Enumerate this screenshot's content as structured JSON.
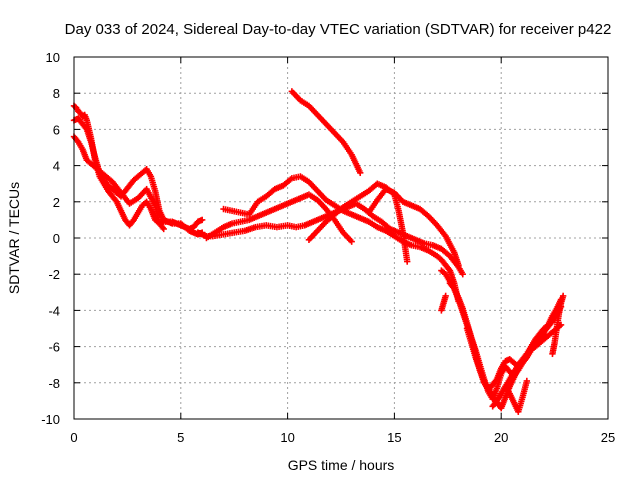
{
  "chart_data": {
    "type": "scatter",
    "title": "Day 033 of 2024, Sidereal Day-to-day VTEC variation (SDTVAR) for receiver p422",
    "xlabel": "GPS time / hours",
    "ylabel": "SDTVAR / TECUs",
    "xlim": [
      0,
      25
    ],
    "ylim": [
      -10,
      10
    ],
    "xticks": [
      0,
      5,
      10,
      15,
      20,
      25
    ],
    "yticks": [
      -10,
      -8,
      -6,
      -4,
      -2,
      0,
      2,
      4,
      6,
      8,
      10
    ],
    "grid": true,
    "marker": "plus",
    "color": "#ff0000",
    "series": [
      {
        "x": [
          0.0,
          0.1,
          0.2,
          0.3,
          0.4,
          0.5,
          0.6,
          0.8,
          1.0,
          1.2,
          1.4,
          1.6,
          1.8,
          2.0,
          2.2,
          2.4,
          2.6,
          2.8,
          3.0,
          3.2,
          3.4,
          3.6,
          3.8,
          4.0,
          4.2,
          4.4,
          4.6,
          4.8,
          5.0,
          5.2,
          5.4,
          5.6,
          5.8,
          6.0
        ],
        "y": [
          7.3,
          7.2,
          7.0,
          6.9,
          6.7,
          6.8,
          6.5,
          5.5,
          4.2,
          3.4,
          3.0,
          2.6,
          2.3,
          2.0,
          1.5,
          1.0,
          0.7,
          1.0,
          1.4,
          1.8,
          2.0,
          1.6,
          1.0,
          0.8,
          0.9,
          0.9,
          0.8,
          0.8,
          0.8,
          0.6,
          0.5,
          0.6,
          0.9,
          1.0
        ]
      },
      {
        "x": [
          0.0,
          0.2,
          0.4,
          0.6,
          0.8,
          1.0,
          1.2,
          1.4,
          1.6,
          1.8,
          2.0,
          2.2,
          2.4,
          2.6,
          2.8,
          3.0,
          3.2,
          3.4,
          3.6,
          3.8,
          4.0,
          4.2,
          4.4,
          4.6,
          4.8,
          5.0,
          5.2,
          5.4,
          5.6,
          5.8,
          6.0
        ],
        "y": [
          6.5,
          6.6,
          6.3,
          6.0,
          5.3,
          4.4,
          3.6,
          3.2,
          2.9,
          2.7,
          2.5,
          2.3,
          2.6,
          2.9,
          3.2,
          3.4,
          3.6,
          3.8,
          3.4,
          2.6,
          1.5,
          1.0,
          0.9,
          0.9,
          0.8,
          0.7,
          0.6,
          0.4,
          0.3,
          0.2,
          0.3
        ]
      },
      {
        "x": [
          0.0,
          0.2,
          0.4,
          0.6,
          1.0,
          1.4,
          1.8,
          2.2,
          2.6,
          3.0,
          3.4,
          3.8,
          4.0,
          4.2
        ],
        "y": [
          5.6,
          5.3,
          4.9,
          4.3,
          3.9,
          3.5,
          3.1,
          2.5,
          1.9,
          2.2,
          2.7,
          1.8,
          0.8,
          0.5
        ]
      },
      {
        "x": [
          5.8,
          6.0,
          6.2,
          6.5,
          7.0,
          7.5,
          8.0,
          8.5,
          9.0,
          9.5,
          10.0,
          10.4,
          10.8,
          11.2,
          11.6,
          12.0,
          12.4,
          12.8,
          13.2,
          13.6,
          14.0,
          14.4,
          14.8,
          15.2,
          15.6,
          16.0,
          16.4,
          16.8,
          17.2,
          17.6,
          18.0,
          18.2
        ],
        "y": [
          0.3,
          0.2,
          0.1,
          0.1,
          0.2,
          0.3,
          0.4,
          0.6,
          0.7,
          0.6,
          0.7,
          0.6,
          0.7,
          0.9,
          1.1,
          1.3,
          1.5,
          1.7,
          1.9,
          1.6,
          1.2,
          0.9,
          0.5,
          0.3,
          0.1,
          -0.1,
          -0.3,
          -0.4,
          -0.6,
          -1.0,
          -1.6,
          -2.0
        ]
      },
      {
        "x": [
          6.2,
          6.6,
          7.0,
          7.4,
          7.8,
          8.2,
          8.6,
          9.0,
          9.4,
          9.8,
          10.2,
          10.6,
          11.0,
          11.4,
          11.8,
          12.2,
          12.6,
          13.0
        ],
        "y": [
          0.0,
          0.3,
          0.6,
          0.8,
          0.9,
          1.0,
          1.2,
          1.4,
          1.6,
          1.8,
          2.0,
          2.2,
          2.4,
          2.1,
          1.6,
          1.0,
          0.3,
          -0.2
        ]
      },
      {
        "x": [
          7.0,
          7.4,
          7.8,
          8.2,
          8.6,
          9.0,
          9.4,
          9.8,
          10.2,
          10.6,
          11.0,
          11.4,
          11.8,
          12.2,
          12.6,
          13.0,
          13.4,
          13.8,
          14.2,
          14.6,
          15.0,
          15.4,
          15.8,
          16.2,
          16.6,
          17.0,
          17.2,
          17.4,
          17.6,
          17.8,
          18.0
        ],
        "y": [
          1.6,
          1.5,
          1.4,
          1.3,
          2.0,
          2.3,
          2.7,
          2.9,
          3.3,
          3.4,
          3.1,
          2.6,
          2.1,
          1.8,
          1.5,
          1.3,
          1.1,
          0.9,
          0.6,
          0.4,
          0.1,
          -0.2,
          -0.4,
          -0.5,
          -0.7,
          -1.0,
          -1.2,
          -1.5,
          -1.8,
          -2.5,
          -3.5
        ]
      },
      {
        "x": [
          10.2,
          10.6,
          11.0,
          11.4,
          11.8,
          12.2,
          12.6,
          13.0,
          13.4
        ],
        "y": [
          8.1,
          7.6,
          7.3,
          6.8,
          6.3,
          5.8,
          5.3,
          4.6,
          3.6
        ]
      },
      {
        "x": [
          11.0,
          11.4,
          11.8,
          12.2,
          12.6,
          13.0,
          13.4,
          13.8,
          14.2,
          14.6,
          15.0,
          15.2,
          15.4,
          15.6
        ],
        "y": [
          -0.1,
          0.4,
          0.9,
          1.3,
          1.7,
          2.0,
          2.3,
          2.6,
          3.0,
          2.8,
          2.4,
          1.5,
          0.3,
          -1.3
        ]
      },
      {
        "x": [
          13.8,
          14.2,
          14.6,
          15.0,
          15.4,
          15.8,
          16.2,
          16.6,
          17.0,
          17.4,
          17.8,
          18.0
        ],
        "y": [
          1.4,
          2.1,
          2.7,
          2.5,
          2.0,
          1.8,
          1.6,
          1.2,
          0.7,
          0.1,
          -0.8,
          -1.5
        ]
      },
      {
        "x": [
          17.2,
          17.4,
          17.6,
          17.8,
          18.0,
          18.2,
          18.4,
          18.6,
          18.8,
          19.0,
          19.2,
          19.4,
          19.6,
          19.8,
          20.0,
          20.2,
          20.4,
          20.6,
          20.8,
          21.0,
          21.2,
          21.4,
          21.6,
          21.8,
          22.0,
          22.2,
          22.4,
          22.6,
          22.8
        ],
        "y": [
          -1.8,
          -2.0,
          -2.4,
          -2.8,
          -3.4,
          -4.1,
          -4.8,
          -5.5,
          -6.2,
          -7.0,
          -7.8,
          -8.5,
          -8.9,
          -8.3,
          -7.5,
          -7.1,
          -7.4,
          -7.6,
          -7.3,
          -6.9,
          -6.5,
          -6.1,
          -5.8,
          -5.5,
          -5.2,
          -4.9,
          -4.6,
          -4.2,
          -3.8
        ]
      },
      {
        "x": [
          17.6,
          17.8,
          18.0,
          18.2,
          18.4,
          18.6,
          18.8,
          19.0,
          19.2,
          19.4,
          19.6,
          19.8,
          20.0,
          20.2,
          20.4,
          20.6,
          20.8,
          21.0,
          21.2,
          21.4,
          21.6,
          21.8,
          22.0,
          22.2,
          22.4,
          22.6,
          22.8
        ],
        "y": [
          -2.5,
          -2.8,
          -3.3,
          -3.9,
          -4.7,
          -5.5,
          -6.4,
          -7.3,
          -8.0,
          -8.4,
          -8.1,
          -7.8,
          -7.2,
          -6.8,
          -6.7,
          -6.9,
          -7.1,
          -6.8,
          -6.4,
          -6.0,
          -5.6,
          -5.3,
          -5.0,
          -4.8,
          -4.3,
          -3.9,
          -3.4
        ]
      },
      {
        "x": [
          18.4,
          18.6,
          18.8,
          19.0,
          19.2,
          19.4,
          19.6,
          19.8,
          20.0,
          20.2,
          20.4,
          20.6,
          20.8,
          21.0,
          21.2,
          21.4,
          21.6,
          21.8,
          22.0
        ],
        "y": [
          -5.0,
          -5.8,
          -6.6,
          -7.3,
          -7.9,
          -8.3,
          -8.7,
          -9.1,
          -9.4,
          -8.8,
          -8.2,
          -7.7,
          -7.2,
          -6.9,
          -6.6,
          -6.2,
          -5.9,
          -5.6,
          -5.3
        ]
      },
      {
        "x": [
          19.6,
          19.8,
          20.0,
          20.2,
          20.4,
          20.6,
          20.8,
          21.0,
          21.2,
          21.4,
          21.6,
          21.8,
          22.0,
          22.2,
          22.4,
          22.6,
          22.8
        ],
        "y": [
          -9.3,
          -9.0,
          -8.6,
          -8.2,
          -7.8,
          -7.4,
          -7.0,
          -6.7,
          -6.4,
          -6.2,
          -6.0,
          -5.8,
          -5.6,
          -5.4,
          -5.2,
          -5.0,
          -4.8
        ]
      },
      {
        "x": [
          20.2,
          20.4,
          20.6,
          20.8,
          21.0,
          21.2
        ],
        "y": [
          -8.2,
          -8.6,
          -9.1,
          -9.6,
          -8.8,
          -7.9
        ]
      },
      {
        "x": [
          22.4,
          22.5,
          22.6,
          22.7,
          22.8,
          22.9
        ],
        "y": [
          -6.4,
          -5.8,
          -5.0,
          -4.2,
          -3.6,
          -3.2
        ]
      },
      {
        "x": [
          17.2,
          17.3,
          17.4
        ],
        "y": [
          -4.0,
          -3.6,
          -3.2
        ]
      }
    ]
  }
}
